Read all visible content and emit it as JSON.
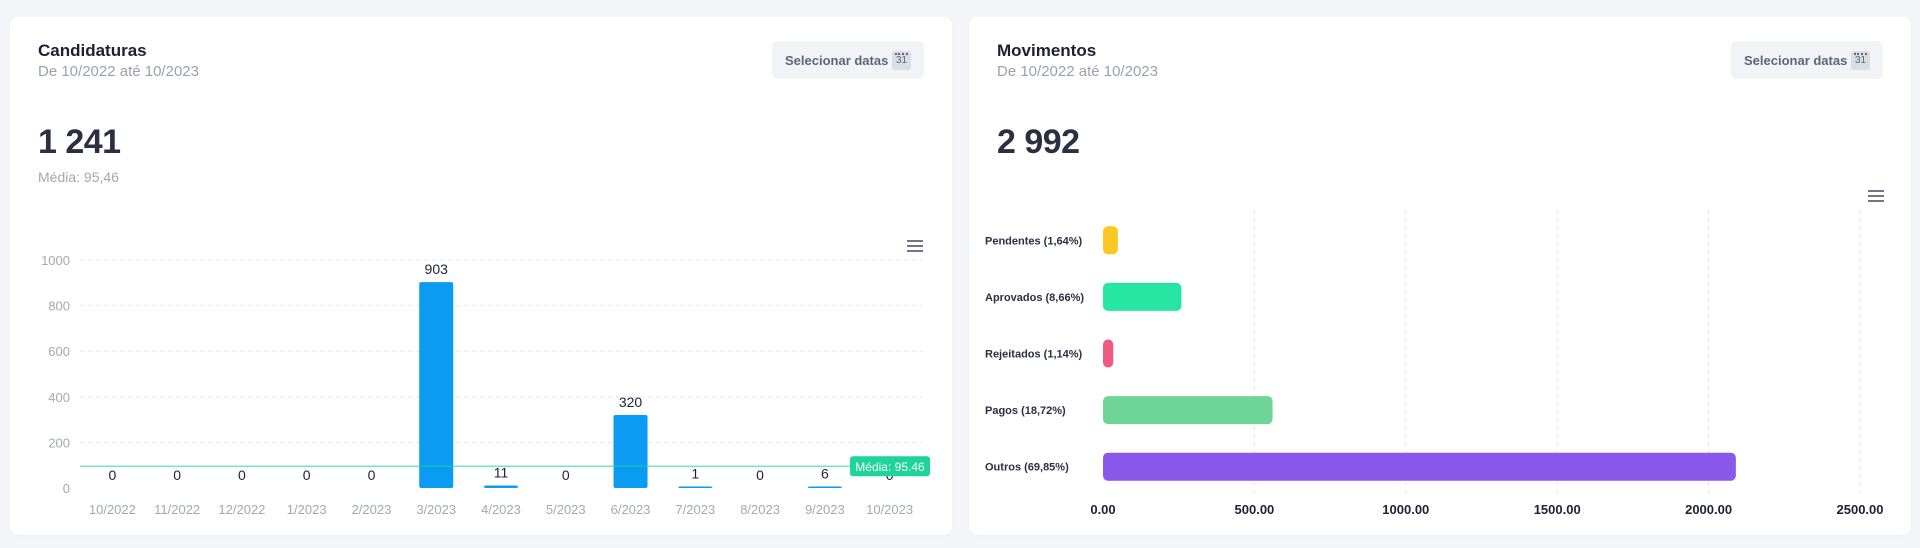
{
  "candidaturas": {
    "title": "Candidaturas",
    "subtitle": "De 10/2022 até 10/2023",
    "date_button": "Selecionar datas",
    "calendar_day": "31",
    "total": "1 241",
    "average_label": "Média: 95,46",
    "chart_data": {
      "type": "bar",
      "categories": [
        "10/2022",
        "11/2022",
        "12/2022",
        "1/2023",
        "2/2023",
        "3/2023",
        "4/2023",
        "5/2023",
        "6/2023",
        "7/2023",
        "8/2023",
        "9/2023",
        "10/2023"
      ],
      "values": [
        0,
        0,
        0,
        0,
        0,
        903,
        11,
        0,
        320,
        1,
        0,
        6,
        0
      ],
      "ylim": [
        0,
        1000
      ],
      "yticks": [
        0,
        200,
        400,
        600,
        800,
        1000
      ],
      "grid": true,
      "bar_color": "#0b9bf2",
      "average_line": {
        "value": 95.46,
        "label": "Média: 95.46",
        "color": "#1fd49a"
      }
    }
  },
  "movimentos": {
    "title": "Movimentos",
    "subtitle": "De 10/2022 até 10/2023",
    "date_button": "Selecionar datas",
    "calendar_day": "31",
    "total": "2 992",
    "chart_data": {
      "type": "bar",
      "orientation": "horizontal",
      "categories": [
        "Pendentes (1,64%)",
        "Aprovados (8,66%)",
        "Rejeitados (1,14%)",
        "Pagos (18,72%)",
        "Outros (69,85%)"
      ],
      "values": [
        49,
        259,
        34,
        560,
        2090
      ],
      "colors": [
        "#fbc823",
        "#27e5a3",
        "#ef5a80",
        "#6ed597",
        "#8a58ea"
      ],
      "xlim": [
        0,
        2500
      ],
      "xticks": [
        "0.00",
        "500.00",
        "1000.00",
        "1500.00",
        "2000.00",
        "2500.00"
      ],
      "grid": true
    }
  }
}
